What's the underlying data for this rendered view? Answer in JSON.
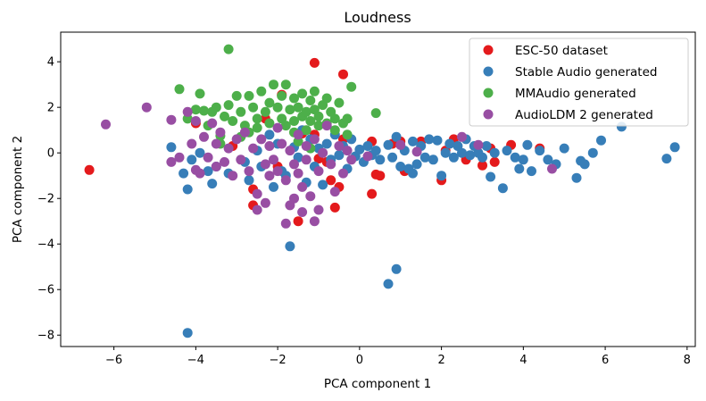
{
  "chart_data": {
    "type": "scatter",
    "title": "Loudness",
    "xlabel": "PCA component 1",
    "ylabel": "PCA component 2",
    "xlim": [
      -7.3,
      8.2
    ],
    "ylim": [
      -8.5,
      5.3
    ],
    "xticks": [
      -6,
      -4,
      -2,
      0,
      2,
      4,
      6,
      8
    ],
    "yticks": [
      -8,
      -6,
      -4,
      -2,
      0,
      2,
      4
    ],
    "xtick_labels": [
      "−6",
      "−4",
      "−2",
      "0",
      "2",
      "4",
      "6",
      "8"
    ],
    "ytick_labels": [
      "−8",
      "−6",
      "−4",
      "−2",
      "0",
      "2",
      "4"
    ],
    "grid": false,
    "legend_position": "top-right",
    "series": [
      {
        "name": "ESC-50 dataset",
        "color": "#e41a1c",
        "points": [
          [
            -6.6,
            -0.75
          ],
          [
            -4.0,
            1.3
          ],
          [
            -3.1,
            0.3
          ],
          [
            -2.6,
            -2.3
          ],
          [
            -2.6,
            -1.6
          ],
          [
            -2.3,
            1.5
          ],
          [
            -2.0,
            -0.6
          ],
          [
            -1.9,
            2.55
          ],
          [
            -1.5,
            -3.0
          ],
          [
            -1.4,
            0.85
          ],
          [
            -1.1,
            3.95
          ],
          [
            -1.0,
            -0.25
          ],
          [
            -0.8,
            -0.4
          ],
          [
            -0.7,
            -1.2
          ],
          [
            -0.6,
            -2.4
          ],
          [
            -0.5,
            -1.5
          ],
          [
            -0.4,
            3.45
          ],
          [
            -0.4,
            0.6
          ],
          [
            0.3,
            -1.8
          ],
          [
            0.4,
            -0.95
          ],
          [
            0.5,
            -1.0
          ],
          [
            0.8,
            0.4
          ],
          [
            1.0,
            0.5
          ],
          [
            1.1,
            -0.8
          ],
          [
            1.5,
            0.5
          ],
          [
            2.0,
            -1.2
          ],
          [
            2.1,
            0.1
          ],
          [
            2.3,
            0.6
          ],
          [
            2.6,
            -0.3
          ],
          [
            3.0,
            -0.55
          ],
          [
            3.2,
            0.2
          ],
          [
            3.3,
            -0.4
          ],
          [
            3.7,
            0.35
          ],
          [
            4.4,
            0.2
          ],
          [
            0.3,
            0.5
          ],
          [
            -1.1,
            0.8
          ]
        ]
      },
      {
        "name": "Stable Audio generated",
        "color": "#377eb8",
        "points": [
          [
            -4.6,
            0.25
          ],
          [
            -4.3,
            -0.9
          ],
          [
            -4.2,
            -1.6
          ],
          [
            -4.1,
            -0.3
          ],
          [
            -4.2,
            -7.9
          ],
          [
            -3.9,
            0.0
          ],
          [
            -3.7,
            -0.8
          ],
          [
            -3.6,
            -1.35
          ],
          [
            -3.5,
            -0.6
          ],
          [
            -3.2,
            -0.9
          ],
          [
            -2.8,
            -0.4
          ],
          [
            -2.7,
            -1.2
          ],
          [
            -2.5,
            0.1
          ],
          [
            -2.4,
            -0.6
          ],
          [
            -2.2,
            0.8
          ],
          [
            -2.1,
            -1.5
          ],
          [
            -2.0,
            0.4
          ],
          [
            -1.9,
            -0.8
          ],
          [
            -1.8,
            -1.0
          ],
          [
            -1.7,
            -4.1
          ],
          [
            -1.6,
            0.25
          ],
          [
            -1.5,
            -0.2
          ],
          [
            -1.4,
            1.0
          ],
          [
            -1.3,
            -1.3
          ],
          [
            -1.2,
            0.6
          ],
          [
            -1.1,
            -0.6
          ],
          [
            -1.0,
            0.2
          ],
          [
            -0.9,
            -1.4
          ],
          [
            -0.8,
            0.4
          ],
          [
            -0.7,
            -0.3
          ],
          [
            -0.6,
            0.8
          ],
          [
            -0.5,
            -0.1
          ],
          [
            -0.4,
            0.3
          ],
          [
            -0.3,
            -0.7
          ],
          [
            -0.2,
            0.6
          ],
          [
            -0.1,
            -0.15
          ],
          [
            0.0,
            0.15
          ],
          [
            0.1,
            -0.4
          ],
          [
            0.2,
            0.3
          ],
          [
            0.3,
            -0.1
          ],
          [
            0.4,
            0.1
          ],
          [
            0.5,
            -0.3
          ],
          [
            0.7,
            -5.75
          ],
          [
            0.9,
            -5.1
          ],
          [
            0.7,
            0.35
          ],
          [
            0.8,
            -0.2
          ],
          [
            0.9,
            0.7
          ],
          [
            1.0,
            -0.6
          ],
          [
            1.1,
            0.1
          ],
          [
            1.2,
            -0.7
          ],
          [
            1.3,
            0.5
          ],
          [
            1.4,
            -0.5
          ],
          [
            1.5,
            0.3
          ],
          [
            1.6,
            -0.2
          ],
          [
            1.7,
            0.6
          ],
          [
            1.8,
            -0.3
          ],
          [
            1.9,
            0.55
          ],
          [
            2.0,
            -1.0
          ],
          [
            2.1,
            0.0
          ],
          [
            2.2,
            0.4
          ],
          [
            2.3,
            -0.2
          ],
          [
            2.4,
            0.3
          ],
          [
            2.5,
            0.0
          ],
          [
            2.6,
            0.6
          ],
          [
            2.7,
            -0.1
          ],
          [
            2.8,
            0.3
          ],
          [
            2.9,
            0.0
          ],
          [
            3.0,
            -0.2
          ],
          [
            3.1,
            0.3
          ],
          [
            3.2,
            -1.05
          ],
          [
            3.3,
            0.0
          ],
          [
            3.5,
            -1.55
          ],
          [
            3.6,
            0.1
          ],
          [
            3.8,
            -0.2
          ],
          [
            3.9,
            -0.7
          ],
          [
            4.1,
            0.35
          ],
          [
            4.2,
            -0.8
          ],
          [
            4.4,
            0.1
          ],
          [
            4.6,
            -0.3
          ],
          [
            4.8,
            -0.5
          ],
          [
            5.0,
            0.2
          ],
          [
            5.3,
            -1.1
          ],
          [
            5.4,
            -0.35
          ],
          [
            5.7,
            0.0
          ],
          [
            5.9,
            0.55
          ],
          [
            6.4,
            1.15
          ],
          [
            7.5,
            -0.25
          ],
          [
            7.7,
            0.25
          ],
          [
            5.5,
            -0.5
          ],
          [
            4.0,
            -0.3
          ],
          [
            1.3,
            -0.9
          ]
        ]
      },
      {
        "name": "MMAudio generated",
        "color": "#4daf4a",
        "points": [
          [
            -3.2,
            4.55
          ],
          [
            -4.4,
            2.8
          ],
          [
            -4.2,
            1.5
          ],
          [
            -4.0,
            1.9
          ],
          [
            -3.9,
            2.6
          ],
          [
            -3.8,
            1.85
          ],
          [
            -3.7,
            1.2
          ],
          [
            -3.6,
            1.8
          ],
          [
            -3.5,
            2.0
          ],
          [
            -3.4,
            0.75
          ],
          [
            -3.3,
            1.6
          ],
          [
            -3.2,
            2.1
          ],
          [
            -3.1,
            1.4
          ],
          [
            -3.0,
            2.5
          ],
          [
            -2.9,
            1.8
          ],
          [
            -2.8,
            1.2
          ],
          [
            -2.7,
            2.5
          ],
          [
            -2.6,
            2.0
          ],
          [
            -2.5,
            1.5
          ],
          [
            -2.4,
            2.7
          ],
          [
            -2.3,
            1.8
          ],
          [
            -2.2,
            1.3
          ],
          [
            -2.2,
            2.2
          ],
          [
            -2.1,
            3.0
          ],
          [
            -2.0,
            2.0
          ],
          [
            -1.9,
            1.5
          ],
          [
            -1.9,
            2.5
          ],
          [
            -1.8,
            1.2
          ],
          [
            -1.8,
            3.0
          ],
          [
            -1.7,
            1.9
          ],
          [
            -1.6,
            2.4
          ],
          [
            -1.6,
            1.4
          ],
          [
            -1.5,
            2.0
          ],
          [
            -1.4,
            1.6
          ],
          [
            -1.4,
            2.6
          ],
          [
            -1.3,
            1.0
          ],
          [
            -1.3,
            1.8
          ],
          [
            -1.2,
            2.3
          ],
          [
            -1.2,
            1.4
          ],
          [
            -1.1,
            1.9
          ],
          [
            -1.1,
            2.7
          ],
          [
            -1.0,
            1.2
          ],
          [
            -1.0,
            1.6
          ],
          [
            -0.9,
            2.1
          ],
          [
            -0.8,
            1.3
          ],
          [
            -0.8,
            2.4
          ],
          [
            -0.7,
            1.8
          ],
          [
            -0.6,
            1.0
          ],
          [
            -0.6,
            1.5
          ],
          [
            -0.5,
            2.2
          ],
          [
            -0.4,
            1.3
          ],
          [
            -0.3,
            0.8
          ],
          [
            -0.3,
            1.5
          ],
          [
            -0.2,
            2.9
          ],
          [
            0.4,
            1.75
          ],
          [
            -3.4,
            0.4
          ],
          [
            -2.9,
            0.7
          ],
          [
            -2.7,
            0.9
          ],
          [
            -2.5,
            1.1
          ],
          [
            -1.6,
            0.9
          ],
          [
            -1.5,
            0.5
          ],
          [
            -1.2,
            0.2
          ]
        ]
      },
      {
        "name": "AudioLDM 2 generated",
        "color": "#984ea3",
        "points": [
          [
            -6.2,
            1.25
          ],
          [
            -5.2,
            2.0
          ],
          [
            -4.6,
            1.45
          ],
          [
            -4.6,
            -0.4
          ],
          [
            -4.4,
            -0.2
          ],
          [
            -4.2,
            1.8
          ],
          [
            -4.1,
            0.4
          ],
          [
            -4.0,
            -0.75
          ],
          [
            -4.0,
            1.4
          ],
          [
            -3.9,
            -0.9
          ],
          [
            -3.8,
            0.7
          ],
          [
            -3.7,
            -0.2
          ],
          [
            -3.6,
            1.3
          ],
          [
            -3.5,
            0.4
          ],
          [
            -3.5,
            -0.6
          ],
          [
            -3.4,
            0.9
          ],
          [
            -3.3,
            -0.4
          ],
          [
            -3.2,
            0.2
          ],
          [
            -3.1,
            -1.0
          ],
          [
            -3.0,
            0.6
          ],
          [
            -2.9,
            -0.3
          ],
          [
            -2.8,
            0.9
          ],
          [
            -2.7,
            -0.8
          ],
          [
            -2.6,
            0.2
          ],
          [
            -2.5,
            -1.8
          ],
          [
            -2.5,
            -2.5
          ],
          [
            -2.4,
            0.6
          ],
          [
            -2.3,
            -0.5
          ],
          [
            -2.2,
            -1.0
          ],
          [
            -2.2,
            0.3
          ],
          [
            -2.1,
            -0.3
          ],
          [
            -2.0,
            1.1
          ],
          [
            -2.0,
            -0.8
          ],
          [
            -1.9,
            0.4
          ],
          [
            -1.8,
            -1.2
          ],
          [
            -1.8,
            -3.1
          ],
          [
            -1.7,
            0.1
          ],
          [
            -1.6,
            -0.5
          ],
          [
            -1.6,
            -2.0
          ],
          [
            -1.5,
            0.8
          ],
          [
            -1.5,
            -0.9
          ],
          [
            -1.4,
            -1.5
          ],
          [
            -1.4,
            -2.6
          ],
          [
            -1.3,
            0.3
          ],
          [
            -1.3,
            -0.3
          ],
          [
            -1.2,
            -1.9
          ],
          [
            -1.1,
            -3.0
          ],
          [
            -1.1,
            0.6
          ],
          [
            -1.0,
            -0.8
          ],
          [
            -1.0,
            -2.5
          ],
          [
            -0.9,
            0.0
          ],
          [
            -0.8,
            1.2
          ],
          [
            -0.7,
            -0.5
          ],
          [
            -0.6,
            -1.7
          ],
          [
            -0.5,
            0.3
          ],
          [
            -0.4,
            -0.9
          ],
          [
            -0.3,
            0.1
          ],
          [
            -0.2,
            -0.3
          ],
          [
            0.2,
            -0.15
          ],
          [
            1.0,
            0.35
          ],
          [
            1.4,
            0.05
          ],
          [
            2.5,
            0.7
          ],
          [
            2.9,
            0.35
          ],
          [
            4.7,
            -0.7
          ],
          [
            -2.3,
            -2.2
          ],
          [
            -1.7,
            -2.3
          ]
        ]
      }
    ]
  }
}
